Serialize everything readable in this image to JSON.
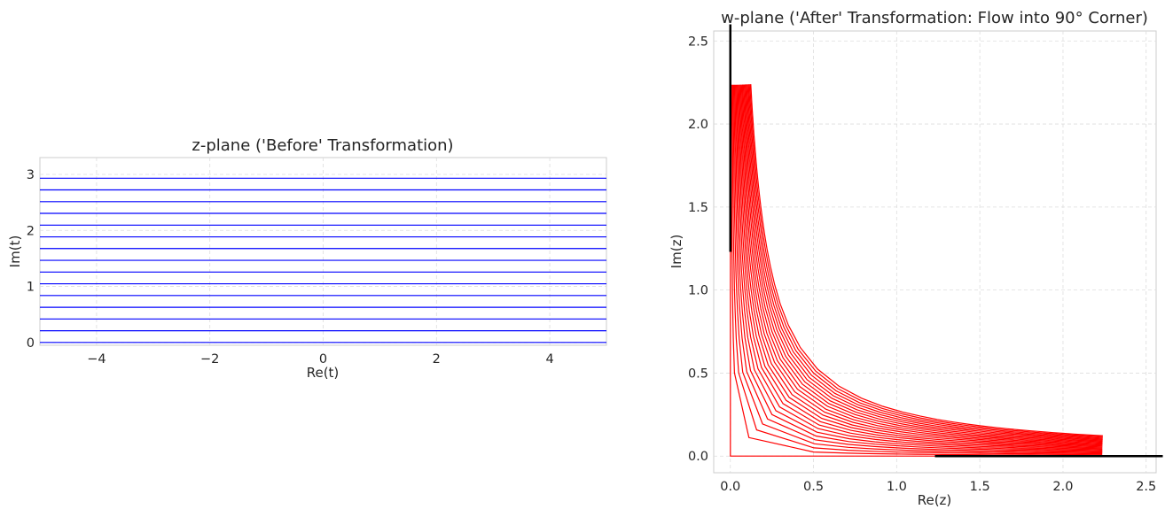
{
  "chart_data": [
    {
      "type": "line",
      "title": "z-plane ('Before' Transformation)",
      "xlabel": "Re(t)",
      "ylabel": "Im(t)",
      "xlim": [
        -5,
        5
      ],
      "ylim": [
        -0.05,
        3.3
      ],
      "xticks": [
        -4,
        -2,
        0,
        2,
        4
      ],
      "xtick_labels": [
        "−4",
        "−2",
        "0",
        "2",
        "4"
      ],
      "yticks": [
        0,
        1,
        2,
        3
      ],
      "ytick_labels": [
        "0",
        "1",
        "2",
        "3"
      ],
      "grid": true,
      "line_color": "#0000ff",
      "series": [
        {
          "x": [
            -5,
            5
          ],
          "y": [
            0.0,
            0.0
          ]
        },
        {
          "x": [
            -5,
            5
          ],
          "y": [
            0.209,
            0.209
          ]
        },
        {
          "x": [
            -5,
            5
          ],
          "y": [
            0.419,
            0.419
          ]
        },
        {
          "x": [
            -5,
            5
          ],
          "y": [
            0.628,
            0.628
          ]
        },
        {
          "x": [
            -5,
            5
          ],
          "y": [
            0.838,
            0.838
          ]
        },
        {
          "x": [
            -5,
            5
          ],
          "y": [
            1.047,
            1.047
          ]
        },
        {
          "x": [
            -5,
            5
          ],
          "y": [
            1.257,
            1.257
          ]
        },
        {
          "x": [
            -5,
            5
          ],
          "y": [
            1.466,
            1.466
          ]
        },
        {
          "x": [
            -5,
            5
          ],
          "y": [
            1.676,
            1.676
          ]
        },
        {
          "x": [
            -5,
            5
          ],
          "y": [
            1.885,
            1.885
          ]
        },
        {
          "x": [
            -5,
            5
          ],
          "y": [
            2.094,
            2.094
          ]
        },
        {
          "x": [
            -5,
            5
          ],
          "y": [
            2.304,
            2.304
          ]
        },
        {
          "x": [
            -5,
            5
          ],
          "y": [
            2.513,
            2.513
          ]
        },
        {
          "x": [
            -5,
            5
          ],
          "y": [
            2.723,
            2.723
          ]
        },
        {
          "x": [
            -5,
            5
          ],
          "y": [
            2.932,
            2.932
          ]
        }
      ]
    },
    {
      "type": "line",
      "title": "w-plane ('After' Transformation: Flow into 90° Corner)",
      "xlabel": "Re(z)",
      "ylabel": "Im(z)",
      "xlim": [
        -0.1,
        2.56
      ],
      "ylim": [
        -0.1,
        2.56
      ],
      "xticks": [
        0,
        0.5,
        1,
        1.5,
        2,
        2.5
      ],
      "xtick_labels": [
        "0.0",
        "0.5",
        "1.0",
        "1.5",
        "2.0",
        "2.5"
      ],
      "yticks": [
        0,
        0.5,
        1,
        1.5,
        2,
        2.5
      ],
      "ytick_labels": [
        "0.0",
        "0.5",
        "1.0",
        "1.5",
        "2.0",
        "2.5"
      ],
      "grid": true,
      "line_color": "#ff0000",
      "wall_color": "#000000",
      "walls": [
        {
          "x": [
            0,
            0
          ],
          "y": [
            1.23,
            2.6
          ]
        },
        {
          "x": [
            1.23,
            2.6
          ],
          "y": [
            0,
            0
          ]
        }
      ],
      "streamline_constants": [
        0.0,
        0.025,
        0.05,
        0.075,
        0.1,
        0.125,
        0.15,
        0.175,
        0.2,
        0.225,
        0.25,
        0.275,
        0.3,
        0.325,
        0.35,
        0.375,
        0.4,
        0.425,
        0.45,
        0.475,
        0.5,
        0.525,
        0.55
      ],
      "re_t_range": [
        -5,
        5
      ]
    }
  ]
}
